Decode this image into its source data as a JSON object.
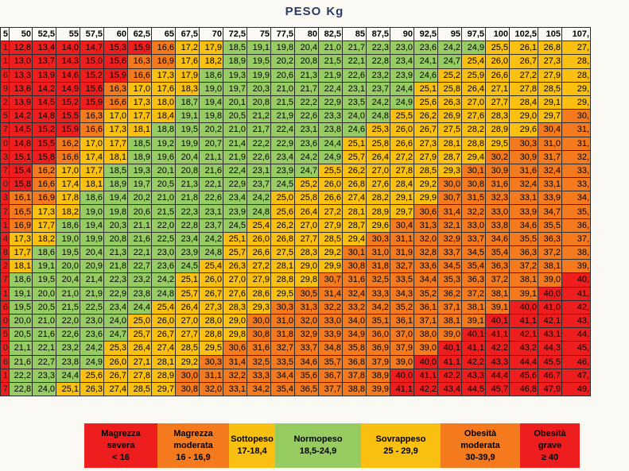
{
  "title": {
    "label": "PESO",
    "unit": "Kg"
  },
  "colors": {
    "magrezza_severa": "#ee1e1e",
    "magrezza_moderata": "#f57a1e",
    "sottopeso": "#f9c012",
    "normopeso": "#97cc63",
    "sovrappeso": "#f9c012",
    "obesita_moderata": "#f57a1e",
    "obesita_grave": "#ee1e1e"
  },
  "chart_data": {
    "type": "table",
    "title": "PESO Kg",
    "weights": [
      "5",
      "50",
      "52,5",
      "55",
      "57,5",
      "60",
      "62,5",
      "65",
      "67,5",
      "70",
      "72,5",
      "75",
      "77,5",
      "80",
      "82,5",
      "85",
      "87,5",
      "90",
      "92,5",
      "95",
      "97,5",
      "100",
      "102,5",
      "105",
      "107,"
    ],
    "rows": [
      [
        "1",
        "12,8",
        "13,4",
        "14,0",
        "14,7",
        "15,3",
        "15,9",
        "16,6",
        "17,2",
        "17,9",
        "18,5",
        "19,1",
        "19,8",
        "20,4",
        "21,0",
        "21,7",
        "22,3",
        "23,0",
        "23,6",
        "24,2",
        "24,9",
        "25,5",
        "26,1",
        "26,8",
        "27,"
      ],
      [
        "1",
        "13,0",
        "13,7",
        "14,3",
        "15,0",
        "15,6",
        "16,3",
        "16,9",
        "17,6",
        "18,2",
        "18,9",
        "19,5",
        "20,2",
        "20,8",
        "21,5",
        "22,1",
        "22,8",
        "23,4",
        "24,1",
        "24,7",
        "25,4",
        "26,0",
        "26,7",
        "27,3",
        "28,"
      ],
      [
        "6",
        "13,3",
        "13,9",
        "14,6",
        "15,2",
        "15,9",
        "16,6",
        "17,3",
        "17,9",
        "18,6",
        "19,3",
        "19,9",
        "20,6",
        "21,3",
        "21,9",
        "22,6",
        "23,2",
        "23,9",
        "24,6",
        "25,2",
        "25,9",
        "26,6",
        "27,2",
        "27,9",
        "28,"
      ],
      [
        "9",
        "13,6",
        "14,2",
        "14,9",
        "15,6",
        "16,3",
        "17,0",
        "17,6",
        "18,3",
        "19,0",
        "19,7",
        "20,3",
        "21,0",
        "21,7",
        "22,4",
        "23,1",
        "23,7",
        "24,4",
        "25,1",
        "25,8",
        "26,4",
        "27,1",
        "27,8",
        "28,5",
        "29,"
      ],
      [
        "2",
        "13,9",
        "14,5",
        "15,2",
        "15,9",
        "16,6",
        "17,3",
        "18,0",
        "18,7",
        "19,4",
        "20,1",
        "20,8",
        "21,5",
        "22,2",
        "22,9",
        "23,5",
        "24,2",
        "24,9",
        "25,6",
        "26,3",
        "27,0",
        "27,7",
        "28,4",
        "29,1",
        "29,"
      ],
      [
        "5",
        "14,2",
        "14,8",
        "15,5",
        "16,3",
        "17,0",
        "17,7",
        "18,4",
        "19,1",
        "19,8",
        "20,5",
        "21,2",
        "21,9",
        "22,6",
        "23,3",
        "24,0",
        "24,8",
        "25,5",
        "26,2",
        "26,9",
        "27,6",
        "28,3",
        "29,0",
        "29,7",
        "30,"
      ],
      [
        "7",
        "14,5",
        "15,2",
        "15,9",
        "16,6",
        "17,3",
        "18,1",
        "18,8",
        "19,5",
        "20,2",
        "21,0",
        "21,7",
        "22,4",
        "23,1",
        "23,8",
        "24,6",
        "25,3",
        "26,0",
        "26,7",
        "27,5",
        "28,2",
        "28,9",
        "29,6",
        "30,4",
        "31,"
      ],
      [
        "0",
        "14,8",
        "15,5",
        "16,2",
        "17,0",
        "17,7",
        "18,5",
        "19,2",
        "19,9",
        "20,7",
        "21,4",
        "22,2",
        "22,9",
        "23,6",
        "24,4",
        "25,1",
        "25,8",
        "26,6",
        "27,3",
        "28,1",
        "28,8",
        "29,5",
        "30,3",
        "31,0",
        "31,"
      ],
      [
        "3",
        "15,1",
        "15,8",
        "16,6",
        "17,4",
        "18,1",
        "18,9",
        "19,6",
        "20,4",
        "21,1",
        "21,9",
        "22,6",
        "23,4",
        "24,2",
        "24,9",
        "25,7",
        "26,4",
        "27,2",
        "27,9",
        "28,7",
        "29,4",
        "30,2",
        "30,9",
        "31,7",
        "32,"
      ],
      [
        "7",
        "15,4",
        "16,2",
        "17,0",
        "17,7",
        "18,5",
        "19,3",
        "20,1",
        "20,8",
        "21,6",
        "22,4",
        "23,1",
        "23,9",
        "24,7",
        "25,5",
        "26,2",
        "27,0",
        "27,8",
        "28,5",
        "29,3",
        "30,1",
        "30,9",
        "31,6",
        "32,4",
        "33,"
      ],
      [
        "0",
        "15,8",
        "16,6",
        "17,4",
        "18,1",
        "18,9",
        "19,7",
        "20,5",
        "21,3",
        "22,1",
        "22,9",
        "23,7",
        "24,5",
        "25,2",
        "26,0",
        "26,8",
        "27,6",
        "28,4",
        "29,2",
        "30,0",
        "30,8",
        "31,6",
        "32,4",
        "33,1",
        "33,"
      ],
      [
        "3",
        "16,1",
        "16,9",
        "17,8",
        "18,6",
        "19,4",
        "20,2",
        "21,0",
        "21,8",
        "22,6",
        "23,4",
        "24,2",
        "25,0",
        "25,8",
        "26,6",
        "27,4",
        "28,2",
        "29,1",
        "29,9",
        "30,7",
        "31,5",
        "32,3",
        "33,1",
        "33,9",
        "34,"
      ],
      [
        "7",
        "16,5",
        "17,3",
        "18,2",
        "19,0",
        "19,8",
        "20,6",
        "21,5",
        "22,3",
        "23,1",
        "23,9",
        "24,8",
        "25,6",
        "26,4",
        "27,2",
        "28,1",
        "28,9",
        "29,7",
        "30,6",
        "31,4",
        "32,2",
        "33,0",
        "33,9",
        "34,7",
        "35,"
      ],
      [
        "1",
        "16,9",
        "17,7",
        "18,6",
        "19,4",
        "20,3",
        "21,1",
        "22,0",
        "22,8",
        "23,7",
        "24,5",
        "25,4",
        "26,2",
        "27,0",
        "27,9",
        "28,7",
        "29,6",
        "30,4",
        "31,3",
        "32,1",
        "33,0",
        "33,8",
        "34,6",
        "35,5",
        "36,"
      ],
      [
        "4",
        "17,3",
        "18,2",
        "19,0",
        "19,9",
        "20,8",
        "21,6",
        "22,5",
        "23,4",
        "24,2",
        "25,1",
        "26,0",
        "26,8",
        "27,7",
        "28,5",
        "29,4",
        "30,3",
        "31,1",
        "32,0",
        "32,9",
        "33,7",
        "34,6",
        "35,5",
        "36,3",
        "37,"
      ],
      [
        "8",
        "17,7",
        "18,6",
        "19,5",
        "20,4",
        "21,3",
        "22,1",
        "23,0",
        "23,9",
        "24,8",
        "25,7",
        "26,6",
        "27,5",
        "28,3",
        "29,2",
        "30,1",
        "31,0",
        "31,9",
        "32,8",
        "33,7",
        "34,5",
        "35,4",
        "36,3",
        "37,2",
        "38,"
      ],
      [
        "2",
        "18,1",
        "19,1",
        "20,0",
        "20,9",
        "21,8",
        "22,7",
        "23,6",
        "24,5",
        "25,4",
        "26,3",
        "27,2",
        "28,1",
        "29,0",
        "29,9",
        "30,8",
        "31,8",
        "32,7",
        "33,6",
        "34,5",
        "35,4",
        "36,3",
        "37,2",
        "38,1",
        "39,"
      ],
      [
        "7",
        "18,6",
        "19,5",
        "20,4",
        "21,4",
        "22,3",
        "23,2",
        "24,2",
        "25,1",
        "26,0",
        "27,0",
        "27,9",
        "28,8",
        "29,8",
        "30,7",
        "31,6",
        "32,5",
        "33,5",
        "34,4",
        "35,3",
        "36,3",
        "37,2",
        "38,1",
        "39,0",
        "40,"
      ],
      [
        "1",
        "19,1",
        "20,0",
        "21,0",
        "21,9",
        "22,9",
        "23,8",
        "24,8",
        "25,7",
        "26,7",
        "27,6",
        "28,6",
        "29,5",
        "30,5",
        "31,4",
        "32,4",
        "33,3",
        "34,3",
        "35,2",
        "36,2",
        "37,2",
        "38,1",
        "39,1",
        "40,0",
        "41,"
      ],
      [
        "6",
        "19,5",
        "20,5",
        "21,5",
        "22,5",
        "23,4",
        "24,4",
        "25,4",
        "26,4",
        "27,3",
        "28,3",
        "29,3",
        "30,3",
        "31,3",
        "32,2",
        "33,2",
        "34,2",
        "35,2",
        "36,1",
        "37,1",
        "38,1",
        "39,1",
        "40,0",
        "41,0",
        "42,"
      ],
      [
        "0",
        "20,0",
        "21,0",
        "22,0",
        "23,0",
        "24,0",
        "25,0",
        "26,0",
        "27,0",
        "28,0",
        "29,0",
        "30,0",
        "31,0",
        "32,0",
        "33,0",
        "34,0",
        "35,1",
        "36,1",
        "37,1",
        "38,1",
        "39,1",
        "40,1",
        "41,1",
        "42,1",
        "43,"
      ],
      [
        "5",
        "20,5",
        "21,6",
        "22,6",
        "23,6",
        "24,7",
        "25,7",
        "26,7",
        "27,7",
        "28,8",
        "29,8",
        "30,8",
        "31,8",
        "32,9",
        "33,9",
        "34,9",
        "36,0",
        "37,0",
        "38,0",
        "39,0",
        "40,1",
        "41,1",
        "42,1",
        "43,1",
        "44,"
      ],
      [
        "0",
        "21,1",
        "22,1",
        "23,2",
        "24,2",
        "25,3",
        "26,4",
        "27,4",
        "28,5",
        "29,5",
        "30,6",
        "31,6",
        "32,7",
        "33,7",
        "34,8",
        "35,8",
        "36,9",
        "37,9",
        "39,0",
        "40,1",
        "41,1",
        "42,2",
        "43,2",
        "44,3",
        "45,"
      ],
      [
        "6",
        "21,6",
        "22,7",
        "23,8",
        "24,9",
        "26,0",
        "27,1",
        "28,1",
        "29,2",
        "30,3",
        "31,4",
        "32,5",
        "33,5",
        "34,6",
        "35,7",
        "36,8",
        "37,9",
        "39,0",
        "40,0",
        "41,1",
        "42,2",
        "43,3",
        "44,4",
        "45,5",
        "46,"
      ],
      [
        "1",
        "22,2",
        "23,3",
        "24,4",
        "25,6",
        "26,7",
        "27,8",
        "28,9",
        "30,0",
        "31,1",
        "32,2",
        "33,3",
        "34,4",
        "35,6",
        "36,7",
        "37,8",
        "38,9",
        "40,0",
        "41,1",
        "42,2",
        "43,3",
        "44,4",
        "45,6",
        "46,7",
        "47,"
      ],
      [
        "7",
        "22,8",
        "24,0",
        "25,1",
        "26,3",
        "27,4",
        "28,5",
        "29,7",
        "30,8",
        "32,0",
        "33,1",
        "34,2",
        "35,4",
        "36,5",
        "37,7",
        "38,8",
        "39,9",
        "41,1",
        "42,2",
        "43,4",
        "44,5",
        "45,7",
        "46,8",
        "47,9",
        "49,"
      ]
    ],
    "legend": [
      {
        "lines": [
          "Magrezza",
          "severa",
          "< 16"
        ],
        "key": "magrezza_severa"
      },
      {
        "lines": [
          "Magrezza",
          "moderata",
          "16 - 16,9"
        ],
        "key": "magrezza_moderata"
      },
      {
        "lines": [
          "Sottopeso",
          "17-18,4"
        ],
        "key": "sottopeso"
      },
      {
        "lines": [
          "Normopeso",
          "18,5-24,9"
        ],
        "key": "normopeso"
      },
      {
        "lines": [
          "Sovrappeso",
          "25 - 29,9"
        ],
        "key": "sovrappeso"
      },
      {
        "lines": [
          "Obesità",
          "moderata",
          "30-39,9"
        ],
        "key": "obesita_moderata"
      },
      {
        "lines": [
          "Obesità",
          "grave",
          "≥ 40"
        ],
        "key": "obesita_grave"
      }
    ]
  }
}
